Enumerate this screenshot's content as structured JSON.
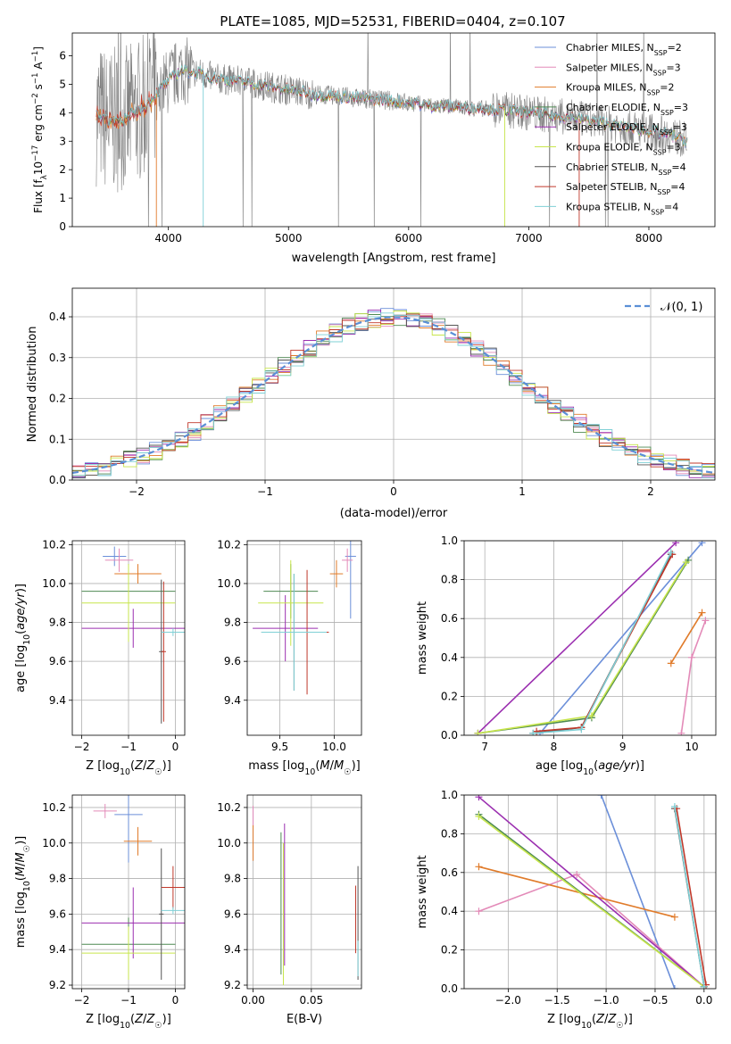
{
  "figure_title": "PLATE=1085, MJD=52531, FIBERID=0404, z=0.107",
  "colors": {
    "chabrier_miles": "#6b8fd9",
    "salpeter_miles": "#e38ab8",
    "kroupa_miles": "#e07b2a",
    "chabrier_elodie": "#4e8a52",
    "salpeter_elodie": "#9b2fb0",
    "kroupa_elodie": "#c7e54c",
    "chabrier_stelib": "#555555",
    "salpeter_stelib": "#c0392b",
    "kroupa_stelib": "#7fd0d6",
    "data_gray": "#808080",
    "normal": "#5a8fd6"
  },
  "chart_data": [
    {
      "type": "line",
      "id": "spectrum",
      "xlabel": "wavelength [Angstrom, rest frame]",
      "ylabel": "Flux [fλ10⁻¹⁷ erg cm⁻² s⁻¹ A⁻¹]",
      "xlim": [
        3200,
        8550
      ],
      "ylim": [
        0,
        6.8
      ],
      "xticks": [
        4000,
        5000,
        6000,
        7000,
        8000
      ],
      "yticks": [
        0,
        1,
        2,
        3,
        4,
        5,
        6
      ],
      "grid": false,
      "legend_position": "top-right",
      "continuum": {
        "x": [
          3400,
          3500,
          3650,
          3800,
          3950,
          4100,
          4250,
          4400,
          4600,
          4800,
          5000,
          5200,
          5400,
          5600,
          5800,
          6000,
          6200,
          6400,
          6600,
          6800,
          7000,
          7200,
          7400,
          7600,
          7800,
          8000,
          8200,
          8320
        ],
        "y": [
          4.0,
          3.7,
          3.8,
          4.2,
          4.9,
          5.5,
          5.4,
          5.2,
          5.1,
          4.95,
          4.8,
          4.65,
          4.6,
          4.5,
          4.45,
          4.35,
          4.25,
          4.2,
          4.15,
          4.1,
          4.0,
          3.9,
          3.8,
          3.65,
          3.5,
          3.35,
          3.2,
          3.0
        ]
      },
      "series": [
        {
          "name": "Chabrier MILES, N_SSP=2",
          "legend": "Chabrier MILES, N",
          "sub": "SSP",
          "suffix": "=2"
        },
        {
          "name": "Salpeter MILES, N_SSP=3",
          "legend": "Salpeter MILES, N",
          "sub": "SSP",
          "suffix": "=3"
        },
        {
          "name": "Kroupa MILES, N_SSP=2",
          "legend": "Kroupa MILES, N",
          "sub": "SSP",
          "suffix": "=2"
        },
        {
          "name": "Chabrier ELODIE, N_SSP=3",
          "legend": "Chabrier ELODIE, N",
          "sub": "SSP",
          "suffix": "=3"
        },
        {
          "name": "Salpeter ELODIE, N_SSP=3",
          "legend": "Salpeter ELODIE, N",
          "sub": "SSP",
          "suffix": "=3"
        },
        {
          "name": "Kroupa ELODIE, N_SSP=3",
          "legend": "Kroupa ELODIE, N",
          "sub": "SSP",
          "suffix": "=3"
        },
        {
          "name": "Chabrier STELIB, N_SSP=4",
          "legend": "Chabrier STELIB, N",
          "sub": "SSP",
          "suffix": "=4"
        },
        {
          "name": "Salpeter STELIB, N_SSP=4",
          "legend": "Salpeter STELIB, N",
          "sub": "SSP",
          "suffix": "=4"
        },
        {
          "name": "Kroupa STELIB, N_SSP=4",
          "legend": "Kroupa STELIB, N",
          "sub": "SSP",
          "suffix": "=4"
        }
      ]
    },
    {
      "type": "line",
      "id": "residuals",
      "xlabel": "(data-model)/error",
      "ylabel": "Normed distribution",
      "xlim": [
        -2.5,
        2.5
      ],
      "ylim": [
        0,
        0.47
      ],
      "xticks": [
        -2,
        -1,
        0,
        1,
        2
      ],
      "yticks": [
        0.0,
        0.1,
        0.2,
        0.3,
        0.4
      ],
      "grid": true,
      "legend_position": "top-right",
      "normal_label": "𝒩(0, 1)",
      "bin_width": 0.1,
      "bin_start": -2.5
    },
    {
      "type": "scatter",
      "id": "z_age",
      "xlabel": "Z [log10(Z/Z☉)]",
      "ylabel": "age  [log10(age/yr)]",
      "xlim": [
        -2.2,
        0.2
      ],
      "ylim": [
        9.22,
        10.22
      ],
      "xticks": [
        -2,
        -1,
        0
      ],
      "yticks": [
        9.4,
        9.6,
        9.8,
        10.0,
        10.2
      ],
      "points": [
        {
          "x": -1.3,
          "y": 10.14,
          "xerr": 0.25,
          "yerr": 0.05,
          "color": "chabrier_miles"
        },
        {
          "x": -1.2,
          "y": 10.12,
          "xerr": 0.3,
          "yerr": 0.06,
          "color": "salpeter_miles"
        },
        {
          "x": -0.8,
          "y": 10.05,
          "xerr": 0.5,
          "yerr": 0.05,
          "color": "kroupa_miles"
        },
        {
          "x": -1.0,
          "y": 9.96,
          "xerr": 1.0,
          "yerr": 0.14,
          "color": "chabrier_elodie"
        },
        {
          "x": -0.9,
          "y": 9.77,
          "xerr": 1.1,
          "yerr": 0.1,
          "color": "salpeter_elodie"
        },
        {
          "x": -1.0,
          "y": 9.9,
          "xerr": 1.0,
          "yerr": 0.2,
          "color": "kroupa_elodie"
        },
        {
          "x": -0.3,
          "y": 9.65,
          "xerr": 0.05,
          "yerr": 0.37,
          "color": "chabrier_stelib"
        },
        {
          "x": -0.25,
          "y": 9.65,
          "xerr": 0.05,
          "yerr": 0.36,
          "color": "salpeter_stelib"
        },
        {
          "x": -0.05,
          "y": 9.75,
          "xerr": 0.25,
          "yerr": 0.02,
          "color": "kroupa_stelib"
        }
      ]
    },
    {
      "type": "scatter",
      "id": "mass_age",
      "xlabel": "mass [log10(M/M☉)]",
      "ylabel": "",
      "xlim": [
        9.2,
        10.25
      ],
      "ylim": [
        9.22,
        10.22
      ],
      "xticks": [
        9.5,
        10.0
      ],
      "yticks": [
        9.4,
        9.6,
        9.8,
        10.0,
        10.2
      ],
      "points": [
        {
          "x": 10.15,
          "y": 10.14,
          "xerr": 0.05,
          "yerr": 0.32,
          "color": "chabrier_miles"
        },
        {
          "x": 10.12,
          "y": 10.12,
          "xerr": 0.05,
          "yerr": 0.06,
          "color": "salpeter_miles"
        },
        {
          "x": 10.02,
          "y": 10.05,
          "xerr": 0.06,
          "yerr": 0.07,
          "color": "kroupa_miles"
        },
        {
          "x": 9.6,
          "y": 9.96,
          "xerr": 0.25,
          "yerr": 0.14,
          "color": "chabrier_elodie"
        },
        {
          "x": 9.55,
          "y": 9.77,
          "xerr": 0.3,
          "yerr": 0.17,
          "color": "salpeter_elodie"
        },
        {
          "x": 9.6,
          "y": 9.9,
          "xerr": 0.3,
          "yerr": 0.22,
          "color": "kroupa_elodie"
        },
        {
          "x": 9.63,
          "y": 9.75,
          "xerr": 0.3,
          "yerr": 0.3,
          "color": "chabrier_stelib"
        },
        {
          "x": 9.75,
          "y": 9.75,
          "xerr": 0.2,
          "yerr": 0.32,
          "color": "salpeter_stelib"
        },
        {
          "x": 9.63,
          "y": 9.75,
          "xerr": 0.3,
          "yerr": 0.3,
          "color": "kroupa_stelib"
        }
      ]
    },
    {
      "type": "line",
      "id": "age_weight",
      "xlabel": "age  [log10(age/yr)]",
      "ylabel": "mass weight",
      "xlim": [
        6.7,
        10.35
      ],
      "ylim": [
        0,
        1.0
      ],
      "xticks": [
        7,
        8,
        9,
        10
      ],
      "yticks": [
        0.0,
        0.2,
        0.4,
        0.6,
        0.8,
        1.0
      ],
      "series": [
        {
          "color": "chabrier_miles",
          "x": [
            7.8,
            10.15
          ],
          "y": [
            0.01,
            0.99
          ]
        },
        {
          "color": "salpeter_miles",
          "x": [
            9.85,
            10.0,
            10.2
          ],
          "y": [
            0.01,
            0.4,
            0.59
          ]
        },
        {
          "color": "kroupa_miles",
          "x": [
            9.7,
            10.15
          ],
          "y": [
            0.37,
            0.63
          ]
        },
        {
          "color": "chabrier_elodie",
          "x": [
            6.9,
            8.55,
            9.95
          ],
          "y": [
            0.01,
            0.09,
            0.9
          ]
        },
        {
          "color": "salpeter_elodie",
          "x": [
            6.9,
            9.77
          ],
          "y": [
            0.01,
            0.99
          ]
        },
        {
          "color": "kroupa_elodie",
          "x": [
            6.9,
            8.55,
            9.92
          ],
          "y": [
            0.01,
            0.1,
            0.89
          ]
        },
        {
          "color": "chabrier_stelib",
          "x": [
            7.7,
            8.4,
            9.7
          ],
          "y": [
            0.01,
            0.04,
            0.93
          ]
        },
        {
          "color": "salpeter_stelib",
          "x": [
            7.75,
            8.4,
            9.72
          ],
          "y": [
            0.02,
            0.04,
            0.93
          ]
        },
        {
          "color": "kroupa_stelib",
          "x": [
            7.7,
            8.4,
            9.7
          ],
          "y": [
            0.01,
            0.03,
            0.94
          ]
        }
      ]
    },
    {
      "type": "scatter",
      "id": "z_mass",
      "xlabel": "Z [log10(Z/Z☉)]",
      "ylabel": "mass [log10(M/M☉)]",
      "xlim": [
        -2.2,
        0.2
      ],
      "ylim": [
        9.18,
        10.27
      ],
      "xticks": [
        -2,
        -1,
        0
      ],
      "yticks": [
        9.2,
        9.4,
        9.6,
        9.8,
        10.0,
        10.2
      ],
      "points": [
        {
          "x": -1.0,
          "y": 10.16,
          "xerr": 0.3,
          "yerr": 0.27,
          "color": "chabrier_miles"
        },
        {
          "x": -1.5,
          "y": 10.18,
          "xerr": 0.25,
          "yerr": 0.04,
          "color": "salpeter_miles"
        },
        {
          "x": -0.8,
          "y": 10.01,
          "xerr": 0.3,
          "yerr": 0.08,
          "color": "kroupa_miles"
        },
        {
          "x": -1.0,
          "y": 9.43,
          "xerr": 1.0,
          "yerr": 0.15,
          "color": "chabrier_elodie"
        },
        {
          "x": -0.9,
          "y": 9.55,
          "xerr": 1.1,
          "yerr": 0.2,
          "color": "salpeter_elodie"
        },
        {
          "x": -1.0,
          "y": 9.38,
          "xerr": 1.0,
          "yerr": 0.15,
          "color": "kroupa_elodie"
        },
        {
          "x": -0.3,
          "y": 9.6,
          "xerr": 0.05,
          "yerr": 0.37,
          "color": "chabrier_stelib"
        },
        {
          "x": -0.05,
          "y": 9.75,
          "xerr": 0.25,
          "yerr": 0.12,
          "color": "salpeter_stelib"
        },
        {
          "x": -0.05,
          "y": 9.62,
          "xerr": 0.25,
          "yerr": 0.02,
          "color": "kroupa_stelib"
        }
      ]
    },
    {
      "type": "scatter",
      "id": "ebv_mass",
      "xlabel": "E(B-V)",
      "ylabel": "",
      "xlim": [
        -0.005,
        0.093
      ],
      "ylim": [
        9.18,
        10.27
      ],
      "xticks": [
        0.0,
        0.05
      ],
      "yticks": [
        9.2,
        9.4,
        9.6,
        9.8,
        10.0,
        10.2
      ],
      "points": [
        {
          "x": 0.0,
          "y": 10.05,
          "xerr": 0,
          "yerr": 0.15,
          "color": "chabrier_miles"
        },
        {
          "x": 0.0,
          "y": 10.15,
          "xerr": 0,
          "yerr": 0.06,
          "color": "salpeter_miles"
        },
        {
          "x": 0.0,
          "y": 10.0,
          "xerr": 0,
          "yerr": 0.1,
          "color": "kroupa_miles"
        },
        {
          "x": 0.024,
          "y": 9.66,
          "xerr": 0,
          "yerr": 0.4,
          "color": "chabrier_elodie"
        },
        {
          "x": 0.027,
          "y": 9.71,
          "xerr": 0,
          "yerr": 0.4,
          "color": "salpeter_elodie"
        },
        {
          "x": 0.026,
          "y": 9.6,
          "xerr": 0,
          "yerr": 0.4,
          "color": "kroupa_elodie"
        },
        {
          "x": 0.09,
          "y": 9.55,
          "xerr": 0,
          "yerr": 0.32,
          "color": "chabrier_stelib"
        },
        {
          "x": 0.088,
          "y": 9.57,
          "xerr": 0,
          "yerr": 0.19,
          "color": "salpeter_stelib"
        },
        {
          "x": 0.09,
          "y": 9.35,
          "xerr": 0,
          "yerr": 0.1,
          "color": "kroupa_stelib"
        }
      ]
    },
    {
      "type": "line",
      "id": "z_weight",
      "xlabel": "Z [log10(Z/Z☉)]",
      "ylabel": "mass weight",
      "xlim": [
        -2.45,
        0.12
      ],
      "ylim": [
        0,
        1.0
      ],
      "xticks": [
        -2.0,
        -1.5,
        -1.0,
        -0.5,
        0.0
      ],
      "yticks": [
        0.0,
        0.2,
        0.4,
        0.6,
        0.8,
        1.0
      ],
      "series": [
        {
          "color": "chabrier_miles",
          "x": [
            -1.05,
            -0.3
          ],
          "y": [
            1.0,
            0.0
          ]
        },
        {
          "color": "salpeter_miles",
          "x": [
            -2.3,
            -1.3,
            0.0
          ],
          "y": [
            0.4,
            0.59,
            0.01
          ]
        },
        {
          "color": "kroupa_miles",
          "x": [
            -2.3,
            -0.3
          ],
          "y": [
            0.63,
            0.37
          ]
        },
        {
          "color": "chabrier_elodie",
          "x": [
            -2.3,
            0.0
          ],
          "y": [
            0.9,
            0.01
          ]
        },
        {
          "color": "salpeter_elodie",
          "x": [
            -2.3,
            0.0
          ],
          "y": [
            0.99,
            0.01
          ]
        },
        {
          "color": "kroupa_elodie",
          "x": [
            -2.3,
            0.0
          ],
          "y": [
            0.89,
            0.01
          ]
        },
        {
          "color": "chabrier_stelib",
          "x": [
            -0.3,
            0.0
          ],
          "y": [
            0.93,
            0.01
          ]
        },
        {
          "color": "salpeter_stelib",
          "x": [
            -0.28,
            0.02
          ],
          "y": [
            0.93,
            0.02
          ]
        },
        {
          "color": "kroupa_stelib",
          "x": [
            -0.3,
            0.0
          ],
          "y": [
            0.94,
            0.01
          ]
        }
      ]
    }
  ]
}
